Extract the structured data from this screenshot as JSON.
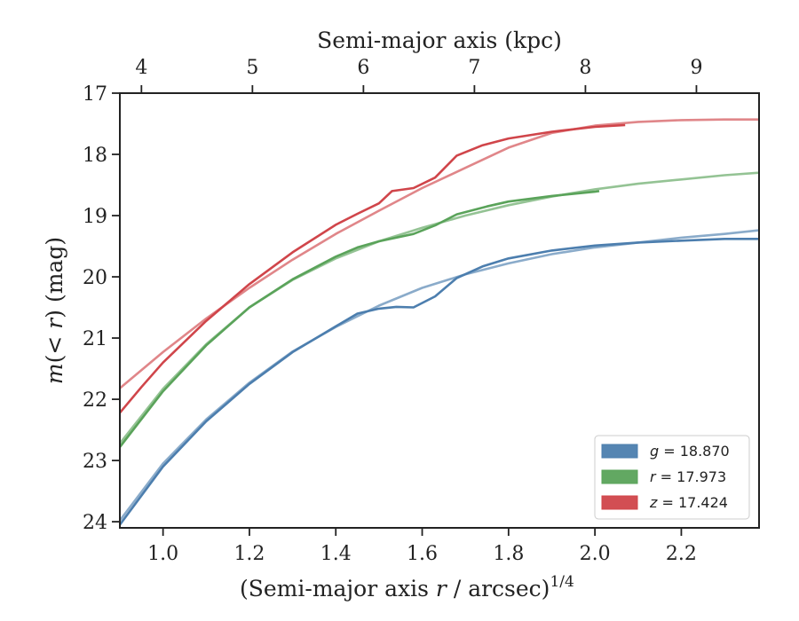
{
  "chart_data": {
    "type": "line",
    "xlabel_bottom": "(Semi-major axis r / arcsec)^1/4",
    "xlabel_top": "Semi-major axis (kpc)",
    "ylabel": "m(< r) (mag)",
    "xlim": [
      0.9,
      2.38
    ],
    "ylim": [
      24.1,
      17.0
    ],
    "y_inverted": true,
    "xticks_bottom": [
      1.0,
      1.2,
      1.4,
      1.6,
      1.8,
      2.0,
      2.2
    ],
    "xticks_bottom_labels": [
      "1.0",
      "1.2",
      "1.4",
      "1.6",
      "1.8",
      "2.0",
      "2.2"
    ],
    "top_axis_kpc": {
      "ticks": [
        4,
        5,
        6,
        7,
        8,
        9
      ],
      "at_x": [
        0.95,
        1.207,
        1.464,
        1.721,
        1.978,
        2.235
      ]
    },
    "yticks": [
      17,
      18,
      19,
      20,
      21,
      22,
      23,
      24
    ],
    "legend_position": "lower-right",
    "series": [
      {
        "name": "g = 18.870",
        "band": "g",
        "value": "18.870",
        "color": "#4c7eae",
        "model": [
          [
            0.9,
            23.98
          ],
          [
            1.0,
            23.05
          ],
          [
            1.1,
            22.33
          ],
          [
            1.2,
            21.73
          ],
          [
            1.3,
            21.22
          ],
          [
            1.4,
            20.82
          ],
          [
            1.5,
            20.47
          ],
          [
            1.6,
            20.18
          ],
          [
            1.7,
            19.96
          ],
          [
            1.8,
            19.78
          ],
          [
            1.9,
            19.63
          ],
          [
            2.0,
            19.52
          ],
          [
            2.1,
            19.44
          ],
          [
            2.2,
            19.36
          ],
          [
            2.3,
            19.3
          ],
          [
            2.38,
            19.24
          ]
        ],
        "data": [
          [
            0.9,
            24.05
          ],
          [
            1.0,
            23.1
          ],
          [
            1.1,
            22.36
          ],
          [
            1.2,
            21.75
          ],
          [
            1.3,
            21.23
          ],
          [
            1.4,
            20.81
          ],
          [
            1.45,
            20.6
          ],
          [
            1.5,
            20.52
          ],
          [
            1.54,
            20.49
          ],
          [
            1.58,
            20.5
          ],
          [
            1.63,
            20.32
          ],
          [
            1.68,
            20.02
          ],
          [
            1.74,
            19.83
          ],
          [
            1.8,
            19.7
          ],
          [
            1.9,
            19.57
          ],
          [
            2.0,
            19.49
          ],
          [
            2.1,
            19.44
          ],
          [
            2.2,
            19.41
          ],
          [
            2.3,
            19.38
          ],
          [
            2.38,
            19.38
          ]
        ]
      },
      {
        "name": "r = 17.973",
        "band": "r",
        "value": "17.973",
        "color": "#5aa35a",
        "model": [
          [
            0.9,
            22.72
          ],
          [
            1.0,
            21.83
          ],
          [
            1.1,
            21.1
          ],
          [
            1.2,
            20.5
          ],
          [
            1.3,
            20.05
          ],
          [
            1.4,
            19.7
          ],
          [
            1.5,
            19.42
          ],
          [
            1.6,
            19.2
          ],
          [
            1.7,
            19.0
          ],
          [
            1.8,
            18.83
          ],
          [
            1.9,
            18.69
          ],
          [
            2.0,
            18.57
          ],
          [
            2.1,
            18.48
          ],
          [
            2.2,
            18.41
          ],
          [
            2.3,
            18.34
          ],
          [
            2.38,
            18.3
          ]
        ],
        "data": [
          [
            0.9,
            22.78
          ],
          [
            1.0,
            21.87
          ],
          [
            1.1,
            21.12
          ],
          [
            1.2,
            20.5
          ],
          [
            1.3,
            20.04
          ],
          [
            1.4,
            19.67
          ],
          [
            1.45,
            19.52
          ],
          [
            1.5,
            19.42
          ],
          [
            1.58,
            19.3
          ],
          [
            1.63,
            19.16
          ],
          [
            1.68,
            18.98
          ],
          [
            1.75,
            18.85
          ],
          [
            1.8,
            18.77
          ],
          [
            1.9,
            18.68
          ],
          [
            2.0,
            18.61
          ],
          [
            2.01,
            18.6
          ]
        ]
      },
      {
        "name": "z = 17.424",
        "band": "z",
        "value": "17.424",
        "color": "#d0454a",
        "model": [
          [
            0.9,
            21.82
          ],
          [
            1.0,
            21.23
          ],
          [
            1.1,
            20.68
          ],
          [
            1.2,
            20.18
          ],
          [
            1.3,
            19.72
          ],
          [
            1.4,
            19.3
          ],
          [
            1.5,
            18.92
          ],
          [
            1.6,
            18.55
          ],
          [
            1.7,
            18.22
          ],
          [
            1.8,
            17.89
          ],
          [
            1.9,
            17.65
          ],
          [
            2.0,
            17.53
          ],
          [
            2.1,
            17.47
          ],
          [
            2.2,
            17.44
          ],
          [
            2.3,
            17.43
          ],
          [
            2.38,
            17.43
          ]
        ],
        "data": [
          [
            0.9,
            22.22
          ],
          [
            0.95,
            21.8
          ],
          [
            1.0,
            21.4
          ],
          [
            1.1,
            20.72
          ],
          [
            1.2,
            20.12
          ],
          [
            1.3,
            19.6
          ],
          [
            1.4,
            19.15
          ],
          [
            1.45,
            18.97
          ],
          [
            1.5,
            18.8
          ],
          [
            1.53,
            18.6
          ],
          [
            1.58,
            18.55
          ],
          [
            1.63,
            18.38
          ],
          [
            1.68,
            18.02
          ],
          [
            1.74,
            17.85
          ],
          [
            1.8,
            17.74
          ],
          [
            1.9,
            17.63
          ],
          [
            2.0,
            17.55
          ],
          [
            2.07,
            17.52
          ]
        ]
      }
    ]
  }
}
